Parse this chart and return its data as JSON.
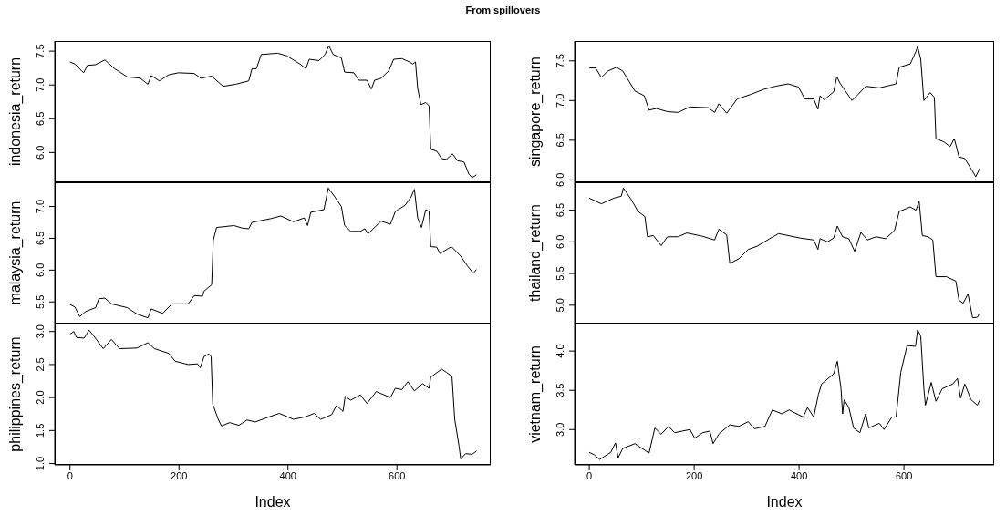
{
  "chart_data": [
    {
      "type": "line",
      "title": "From spillovers",
      "ylabel": "indonesia_return",
      "tick_labels": "y",
      "color": "#000000",
      "xlim": [
        -28,
        772
      ],
      "ylim": [
        5.56,
        7.65
      ],
      "yticks": [
        {
          "value": 6,
          "label": "6.0"
        },
        6.5,
        {
          "value": 7,
          "label": "7.0"
        },
        7.5
      ],
      "x": [
        0,
        9,
        25,
        32,
        47,
        64,
        82,
        105,
        129,
        143,
        149,
        164,
        181,
        199,
        228,
        240,
        260,
        281,
        304,
        328,
        334,
        342,
        351,
        381,
        398,
        422,
        433,
        439,
        457,
        468,
        475,
        483,
        498,
        504,
        521,
        530,
        545,
        553,
        559,
        571,
        585,
        594,
        609,
        623,
        629,
        634,
        638,
        644,
        653,
        659,
        662,
        673,
        682,
        691,
        702,
        711,
        723,
        732,
        738,
        746
      ],
      "values": [
        7.34,
        7.31,
        7.18,
        7.29,
        7.3,
        7.37,
        7.24,
        7.12,
        7.1,
        7.01,
        7.14,
        7.06,
        7.15,
        7.18,
        7.17,
        7.1,
        7.13,
        6.98,
        7.01,
        7.06,
        7.24,
        7.24,
        7.45,
        7.47,
        7.43,
        7.31,
        7.24,
        7.38,
        7.36,
        7.45,
        7.58,
        7.45,
        7.4,
        7.19,
        7.18,
        7.07,
        7.07,
        6.94,
        7.07,
        7.1,
        7.21,
        7.38,
        7.39,
        7.34,
        7.31,
        7.34,
        6.95,
        6.71,
        6.74,
        6.69,
        6.05,
        6.02,
        5.91,
        5.9,
        5.98,
        5.88,
        5.86,
        5.68,
        5.63,
        5.67
      ]
    },
    {
      "type": "line",
      "ylabel": "singapore_return",
      "tick_labels": "y",
      "color": "#000000",
      "xlim": [
        -28,
        772
      ],
      "ylim": [
        5.97,
        7.75
      ],
      "yticks": [
        {
          "value": 6,
          "label": "6.0"
        },
        6.5,
        {
          "value": 7,
          "label": "7.0"
        },
        7.5
      ],
      "x": [
        0,
        12,
        23,
        35,
        52,
        64,
        76,
        87,
        105,
        114,
        128,
        149,
        169,
        192,
        227,
        239,
        247,
        262,
        282,
        309,
        332,
        355,
        379,
        399,
        411,
        428,
        436,
        440,
        448,
        466,
        472,
        478,
        501,
        513,
        527,
        553,
        585,
        591,
        612,
        623,
        626,
        632,
        638,
        650,
        658,
        661,
        676,
        688,
        696,
        705,
        716,
        728,
        737,
        745
      ],
      "values": [
        7.41,
        7.41,
        7.29,
        7.37,
        7.42,
        7.37,
        7.24,
        7.12,
        7.06,
        6.88,
        6.9,
        6.86,
        6.85,
        6.92,
        6.91,
        6.85,
        6.96,
        6.84,
        7.02,
        7.08,
        7.14,
        7.18,
        7.21,
        7.17,
        7.02,
        7.02,
        6.89,
        7.06,
        7.01,
        7.11,
        7.3,
        7.22,
        7.0,
        7.08,
        7.18,
        7.16,
        7.21,
        7.42,
        7.46,
        7.62,
        7.68,
        7.52,
        7.0,
        7.1,
        7.04,
        6.52,
        6.48,
        6.42,
        6.52,
        6.29,
        6.27,
        6.14,
        6.04,
        6.15
      ]
    },
    {
      "type": "line",
      "ylabel": "malaysia_return",
      "tick_labels": "y",
      "color": "#000000",
      "xlim": [
        -28,
        772
      ],
      "ylim": [
        5.16,
        7.38
      ],
      "yticks": [
        5.5,
        {
          "value": 6,
          "label": "6.0"
        },
        6.5,
        {
          "value": 7,
          "label": "7.0"
        }
      ],
      "x": [
        0,
        9,
        18,
        29,
        47,
        53,
        64,
        76,
        105,
        123,
        143,
        149,
        170,
        187,
        217,
        228,
        243,
        246,
        260,
        263,
        269,
        301,
        316,
        328,
        334,
        369,
        387,
        410,
        430,
        436,
        442,
        466,
        474,
        486,
        498,
        504,
        515,
        533,
        541,
        547,
        571,
        588,
        597,
        615,
        626,
        632,
        638,
        645,
        653,
        659,
        662,
        673,
        679,
        700,
        717,
        729,
        740,
        746
      ],
      "values": [
        5.46,
        5.42,
        5.27,
        5.35,
        5.41,
        5.55,
        5.56,
        5.47,
        5.41,
        5.31,
        5.25,
        5.39,
        5.32,
        5.47,
        5.47,
        5.6,
        5.59,
        5.67,
        5.77,
        6.47,
        6.67,
        6.7,
        6.66,
        6.65,
        6.75,
        6.81,
        6.85,
        6.76,
        6.82,
        6.7,
        6.91,
        6.95,
        7.29,
        7.15,
        7.0,
        6.7,
        6.61,
        6.61,
        6.65,
        6.57,
        6.77,
        6.72,
        6.92,
        7.02,
        7.15,
        7.27,
        6.82,
        6.67,
        6.95,
        6.92,
        6.37,
        6.36,
        6.26,
        6.37,
        6.22,
        6.07,
        5.95,
        6.01
      ]
    },
    {
      "type": "line",
      "ylabel": "thailand_return",
      "tick_labels": "y",
      "color": "#000000",
      "xlim": [
        -28,
        772
      ],
      "ylim": [
        4.71,
        6.94
      ],
      "yticks": [
        {
          "value": 5,
          "label": "5.0"
        },
        5.5,
        {
          "value": 6,
          "label": "6.0"
        },
        6.5
      ],
      "x": [
        0,
        23,
        47,
        61,
        65,
        79,
        93,
        106,
        111,
        122,
        137,
        149,
        169,
        186,
        215,
        239,
        247,
        262,
        268,
        285,
        303,
        320,
        344,
        361,
        402,
        428,
        436,
        440,
        454,
        466,
        473,
        483,
        495,
        506,
        518,
        530,
        547,
        565,
        582,
        591,
        612,
        623,
        629,
        635,
        646,
        655,
        661,
        681,
        699,
        705,
        713,
        722,
        731,
        740,
        745
      ],
      "values": [
        6.69,
        6.6,
        6.69,
        6.72,
        6.85,
        6.68,
        6.48,
        6.4,
        6.08,
        6.1,
        5.94,
        6.08,
        6.08,
        6.14,
        6.09,
        6.03,
        6.2,
        6.11,
        5.66,
        5.73,
        5.88,
        5.93,
        6.05,
        6.13,
        6.06,
        6.03,
        5.88,
        6.05,
        6.0,
        6.06,
        6.25,
        6.08,
        6.05,
        5.85,
        6.15,
        6.03,
        6.08,
        6.05,
        6.18,
        6.48,
        6.55,
        6.5,
        6.64,
        6.1,
        6.08,
        6.03,
        5.45,
        5.45,
        5.38,
        5.08,
        5.03,
        5.18,
        4.8,
        4.81,
        4.88
      ]
    },
    {
      "type": "line",
      "ylabel": "philippines_return",
      "xlabel": "Index",
      "color": "#000000",
      "xlim": [
        -28,
        772
      ],
      "ylim": [
        0.98,
        3.12
      ],
      "xticks": [
        0,
        200,
        400,
        600
      ],
      "yticks": [
        {
          "value": 1,
          "label": "1.0"
        },
        1.5,
        {
          "value": 2,
          "label": "2.0"
        },
        2.5,
        {
          "value": 3,
          "label": "3.0"
        }
      ],
      "x": [
        0,
        7,
        12,
        26,
        35,
        44,
        61,
        76,
        91,
        123,
        143,
        155,
        181,
        193,
        217,
        234,
        239,
        246,
        255,
        259,
        262,
        272,
        278,
        293,
        310,
        325,
        340,
        363,
        384,
        410,
        433,
        448,
        460,
        480,
        489,
        501,
        505,
        515,
        533,
        545,
        562,
        588,
        597,
        609,
        620,
        632,
        647,
        659,
        662,
        682,
        691,
        701,
        706,
        714,
        717,
        726,
        738,
        746
      ],
      "values": [
        2.96,
        3.0,
        2.91,
        2.9,
        3.02,
        2.93,
        2.74,
        2.88,
        2.74,
        2.75,
        2.83,
        2.74,
        2.67,
        2.55,
        2.5,
        2.51,
        2.45,
        2.62,
        2.66,
        2.62,
        1.9,
        1.67,
        1.57,
        1.62,
        1.58,
        1.66,
        1.63,
        1.7,
        1.76,
        1.67,
        1.71,
        1.76,
        1.67,
        1.74,
        1.88,
        1.79,
        2.02,
        1.96,
        2.04,
        1.91,
        2.09,
        2.0,
        2.14,
        2.12,
        2.24,
        2.1,
        2.21,
        2.14,
        2.31,
        2.43,
        2.38,
        2.32,
        1.67,
        1.26,
        1.07,
        1.15,
        1.14,
        1.19
      ]
    },
    {
      "type": "line",
      "ylabel": "vietnam_return",
      "xlabel": "Index",
      "color": "#000000",
      "xlim": [
        -28,
        772
      ],
      "ylim": [
        2.55,
        4.35
      ],
      "xticks": [
        0,
        200,
        400,
        600
      ],
      "yticks": [
        {
          "value": 3,
          "label": "3.0"
        },
        3.5,
        {
          "value": 4,
          "label": "4.0"
        }
      ],
      "x": [
        0,
        9,
        20,
        41,
        50,
        55,
        64,
        87,
        114,
        125,
        137,
        151,
        163,
        192,
        201,
        216,
        230,
        236,
        248,
        268,
        285,
        303,
        315,
        335,
        349,
        367,
        381,
        408,
        416,
        428,
        437,
        443,
        466,
        473,
        480,
        483,
        486,
        495,
        504,
        516,
        527,
        533,
        553,
        562,
        577,
        585,
        594,
        606,
        622,
        626,
        632,
        638,
        641,
        652,
        661,
        673,
        693,
        702,
        708,
        716,
        728,
        740,
        745
      ],
      "values": [
        2.71,
        2.68,
        2.62,
        2.71,
        2.83,
        2.64,
        2.76,
        2.82,
        2.7,
        3.02,
        2.94,
        3.04,
        2.96,
        3.0,
        2.89,
        2.96,
        2.98,
        2.82,
        2.95,
        3.06,
        3.04,
        3.1,
        3.01,
        3.04,
        3.25,
        3.2,
        3.25,
        3.16,
        3.28,
        3.16,
        3.45,
        3.58,
        3.71,
        3.87,
        3.52,
        3.2,
        3.38,
        3.28,
        3.02,
        2.96,
        3.2,
        3.02,
        3.08,
        3.0,
        3.16,
        3.16,
        3.73,
        4.07,
        4.06,
        4.27,
        4.19,
        3.52,
        3.31,
        3.6,
        3.36,
        3.52,
        3.58,
        3.65,
        3.4,
        3.58,
        3.38,
        3.31,
        3.38
      ]
    }
  ]
}
